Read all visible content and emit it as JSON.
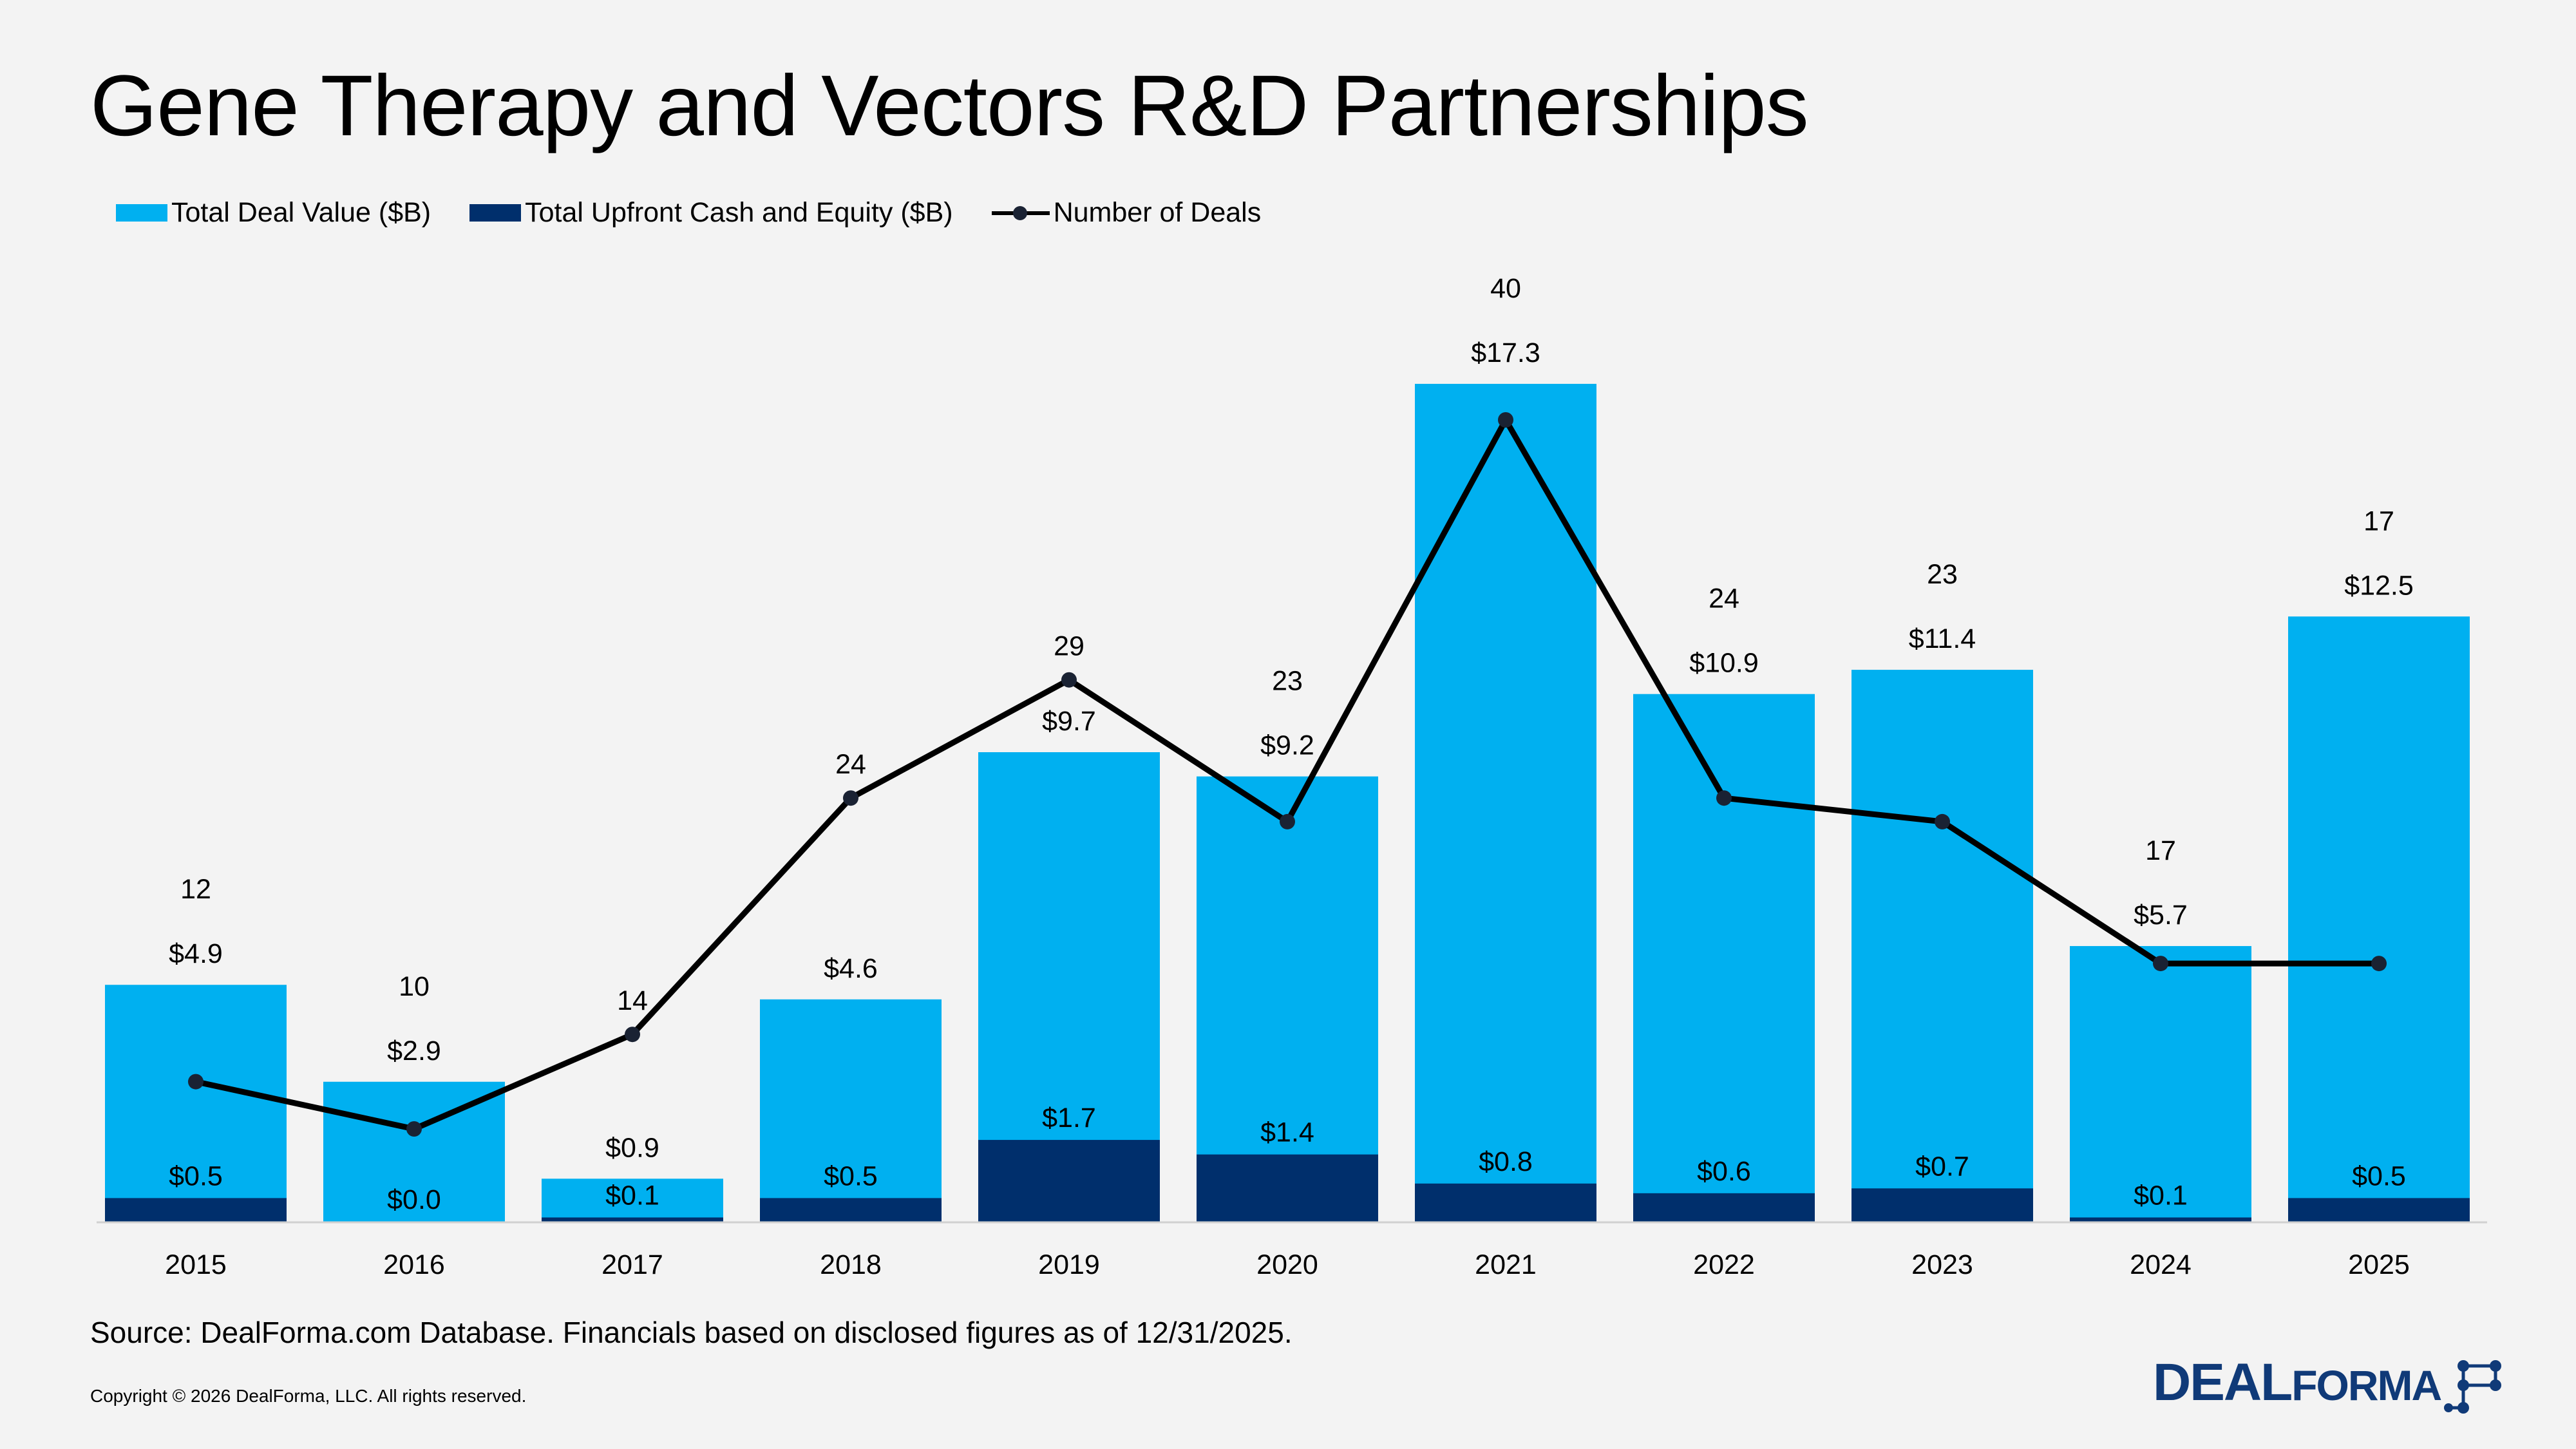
{
  "title": "Gene Therapy and Vectors R&D Partnerships",
  "legend": {
    "total_deal_value": "Total Deal Value ($B)",
    "total_upfront": "Total Upfront Cash and Equity ($B)",
    "number_of_deals": "Number of Deals"
  },
  "colors": {
    "total_deal_value": "#00b0f0",
    "total_upfront": "#002f6c",
    "number_of_deals": "#000000",
    "logo": "#103a78"
  },
  "source": "Source: DealForma.com Database. Financials based on disclosed figures as of 12/31/2025.",
  "copyright": "Copyright © 2026 DealForma, LLC. All rights reserved.",
  "logo": {
    "text_main": "DEAL",
    "text_second": "FORMA"
  },
  "chart_data": {
    "type": "bar",
    "categories": [
      "2015",
      "2016",
      "2017",
      "2018",
      "2019",
      "2020",
      "2021",
      "2022",
      "2023",
      "2024",
      "2025"
    ],
    "series": [
      {
        "name": "Total Deal Value ($B)",
        "values": [
          4.9,
          2.9,
          0.9,
          4.6,
          9.7,
          9.2,
          17.3,
          10.9,
          11.4,
          5.7,
          12.5
        ],
        "labels": [
          "$4.9",
          "$2.9",
          "$0.9",
          "$4.6",
          "$9.7",
          "$9.2",
          "$17.3",
          "$10.9",
          "$11.4",
          "$5.7",
          "$12.5"
        ]
      },
      {
        "name": "Total Upfront Cash and Equity ($B)",
        "values": [
          0.5,
          0.0,
          0.1,
          0.5,
          1.7,
          1.4,
          0.8,
          0.6,
          0.7,
          0.1,
          0.5
        ],
        "labels": [
          "$0.5",
          "$0.0",
          "$0.1",
          "$0.5",
          "$1.7",
          "$1.4",
          "$0.8",
          "$0.6",
          "$0.7",
          "$0.1",
          "$0.5"
        ]
      },
      {
        "name": "Number of Deals",
        "type": "line",
        "values": [
          12,
          10,
          14,
          24,
          29,
          23,
          40,
          24,
          23,
          17,
          17
        ]
      }
    ],
    "bar_axis_range": [
      0,
      17.5
    ],
    "line_axis_range": [
      0,
      42
    ],
    "legend_position": "top-left",
    "grid": false
  }
}
